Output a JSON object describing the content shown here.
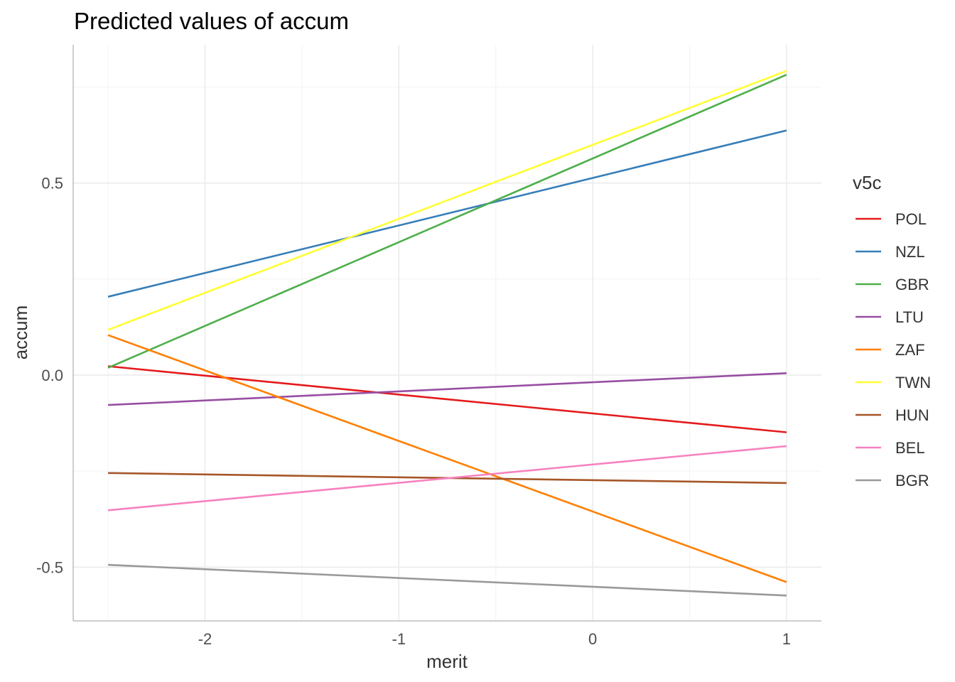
{
  "chart_data": {
    "type": "line",
    "title": "Predicted values of accum",
    "xlabel": "merit",
    "ylabel": "accum",
    "xlim": [
      -2.68,
      1.18
    ],
    "ylim": [
      -0.64,
      0.86
    ],
    "x_ticks": [
      -2,
      -1,
      0,
      1
    ],
    "x_tick_labels": [
      "-2",
      "-1",
      "0",
      "1"
    ],
    "y_ticks": [
      -0.5,
      0.0,
      0.5
    ],
    "y_tick_labels": [
      "-0.5",
      "0.0",
      "0.5"
    ],
    "grid": true,
    "legend": {
      "title": "v5c",
      "position": "right"
    },
    "series": [
      {
        "name": "POL",
        "color": "#e41a1c",
        "x": [
          -2.5,
          1
        ],
        "y": [
          0.023,
          -0.149
        ]
      },
      {
        "name": "NZL",
        "color": "#377eb8",
        "x": [
          -2.5,
          1
        ],
        "y": [
          0.204,
          0.637
        ]
      },
      {
        "name": "GBR",
        "color": "#4daf4a",
        "x": [
          -2.5,
          1
        ],
        "y": [
          0.019,
          0.782
        ]
      },
      {
        "name": "LTU",
        "color": "#984ea3",
        "x": [
          -2.5,
          1
        ],
        "y": [
          -0.078,
          0.005
        ]
      },
      {
        "name": "ZAF",
        "color": "#ff7f00",
        "x": [
          -2.5,
          1
        ],
        "y": [
          0.104,
          -0.539
        ]
      },
      {
        "name": "TWN",
        "color": "#ffff33",
        "x": [
          -2.5,
          1
        ],
        "y": [
          0.118,
          0.792
        ]
      },
      {
        "name": "HUN",
        "color": "#a65628",
        "x": [
          -2.5,
          1
        ],
        "y": [
          -0.255,
          -0.281
        ]
      },
      {
        "name": "BEL",
        "color": "#f781bf",
        "x": [
          -2.5,
          1
        ],
        "y": [
          -0.352,
          -0.185
        ]
      },
      {
        "name": "BGR",
        "color": "#999999",
        "x": [
          -2.5,
          1
        ],
        "y": [
          -0.494,
          -0.574
        ]
      }
    ]
  }
}
